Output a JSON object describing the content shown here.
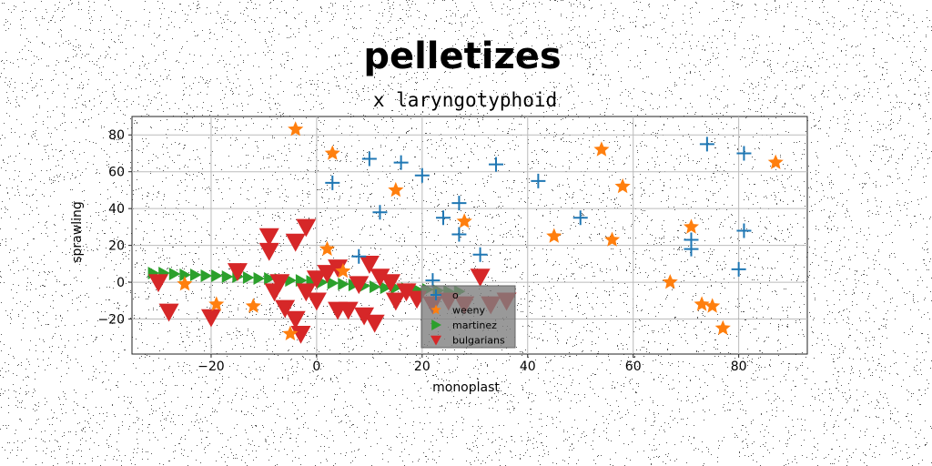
{
  "chart_data": {
    "type": "scatter",
    "title": "pelletizes",
    "subtitle": "x laryngotyphoid",
    "xlabel": "monoplast",
    "ylabel": "sprawling",
    "xlim": [
      -35,
      93
    ],
    "ylim": [
      -39,
      90
    ],
    "xticks": [
      -20,
      0,
      20,
      40,
      60,
      80
    ],
    "yticks": [
      -20,
      0,
      20,
      40,
      60,
      80
    ],
    "grid": true,
    "legend_position": "lower-center",
    "series": [
      {
        "name": "o",
        "marker": "plus",
        "color": "#1f77b4",
        "points": [
          [
            3,
            54
          ],
          [
            10,
            67
          ],
          [
            16,
            65
          ],
          [
            20,
            58
          ],
          [
            12,
            38
          ],
          [
            27,
            43
          ],
          [
            24,
            35
          ],
          [
            27,
            26
          ],
          [
            31,
            15
          ],
          [
            34,
            64
          ],
          [
            42,
            55
          ],
          [
            50,
            35
          ],
          [
            74,
            75
          ],
          [
            81,
            70
          ],
          [
            71,
            18
          ],
          [
            71,
            23
          ],
          [
            81,
            28
          ],
          [
            80,
            7
          ],
          [
            8,
            14
          ],
          [
            22,
            1
          ]
        ]
      },
      {
        "name": "weeny",
        "marker": "star",
        "color": "#ff7f0e",
        "points": [
          [
            -4,
            83
          ],
          [
            3,
            70
          ],
          [
            2,
            18
          ],
          [
            5,
            6
          ],
          [
            15,
            50
          ],
          [
            28,
            33
          ],
          [
            45,
            25
          ],
          [
            54,
            72
          ],
          [
            56,
            23
          ],
          [
            58,
            52
          ],
          [
            67,
            0
          ],
          [
            71,
            30
          ],
          [
            87,
            65
          ],
          [
            73,
            -12
          ],
          [
            75,
            -13
          ],
          [
            77,
            -25
          ],
          [
            -12,
            -13
          ],
          [
            -19,
            -12
          ],
          [
            -25,
            -1
          ],
          [
            -5,
            -28
          ]
        ]
      },
      {
        "name": "martinez",
        "marker": "triangle-right",
        "color": "#2ca02c",
        "points": [
          [
            -31,
            5
          ],
          [
            -29,
            5
          ],
          [
            -27,
            4.5
          ],
          [
            -25,
            4
          ],
          [
            -23,
            4
          ],
          [
            -21,
            3.5
          ],
          [
            -19,
            3.5
          ],
          [
            -17,
            3
          ],
          [
            -15,
            3
          ],
          [
            -13,
            2.5
          ],
          [
            -11,
            2
          ],
          [
            -9,
            2
          ],
          [
            -7,
            1.5
          ],
          [
            -5,
            1
          ],
          [
            -3,
            1
          ],
          [
            -1,
            0.5
          ],
          [
            1,
            0
          ],
          [
            3,
            -0.5
          ],
          [
            5,
            -1
          ],
          [
            7,
            -1.5
          ],
          [
            9,
            -2
          ],
          [
            11,
            -2.5
          ],
          [
            13,
            -3
          ],
          [
            15,
            -3
          ],
          [
            17,
            -3.5
          ],
          [
            19,
            -4
          ],
          [
            21,
            -4
          ],
          [
            23,
            -4.5
          ],
          [
            25,
            -5
          ],
          [
            27,
            -5
          ]
        ]
      },
      {
        "name": "bulgarians",
        "marker": "triangle-down",
        "color": "#d62728",
        "points": [
          [
            -30,
            0
          ],
          [
            -28,
            -16
          ],
          [
            -20,
            -19
          ],
          [
            -15,
            6
          ],
          [
            -9,
            25
          ],
          [
            -9,
            17
          ],
          [
            -8,
            -5
          ],
          [
            -7,
            0
          ],
          [
            -6,
            -14
          ],
          [
            -4,
            22
          ],
          [
            -2,
            30
          ],
          [
            -4,
            -20
          ],
          [
            -3,
            -28
          ],
          [
            -2,
            -5
          ],
          [
            0,
            2
          ],
          [
            0,
            -10
          ],
          [
            2,
            5
          ],
          [
            4,
            8
          ],
          [
            4,
            -15
          ],
          [
            6,
            -15
          ],
          [
            8,
            -1
          ],
          [
            9,
            -18
          ],
          [
            10,
            10
          ],
          [
            11,
            -22
          ],
          [
            12,
            3
          ],
          [
            14,
            0
          ],
          [
            15,
            -10
          ],
          [
            17,
            -5
          ],
          [
            19,
            -9
          ],
          [
            22,
            -12
          ],
          [
            25,
            -10
          ],
          [
            28,
            -12
          ],
          [
            31,
            3
          ],
          [
            36,
            -10
          ],
          [
            33,
            -12
          ]
        ]
      }
    ]
  }
}
